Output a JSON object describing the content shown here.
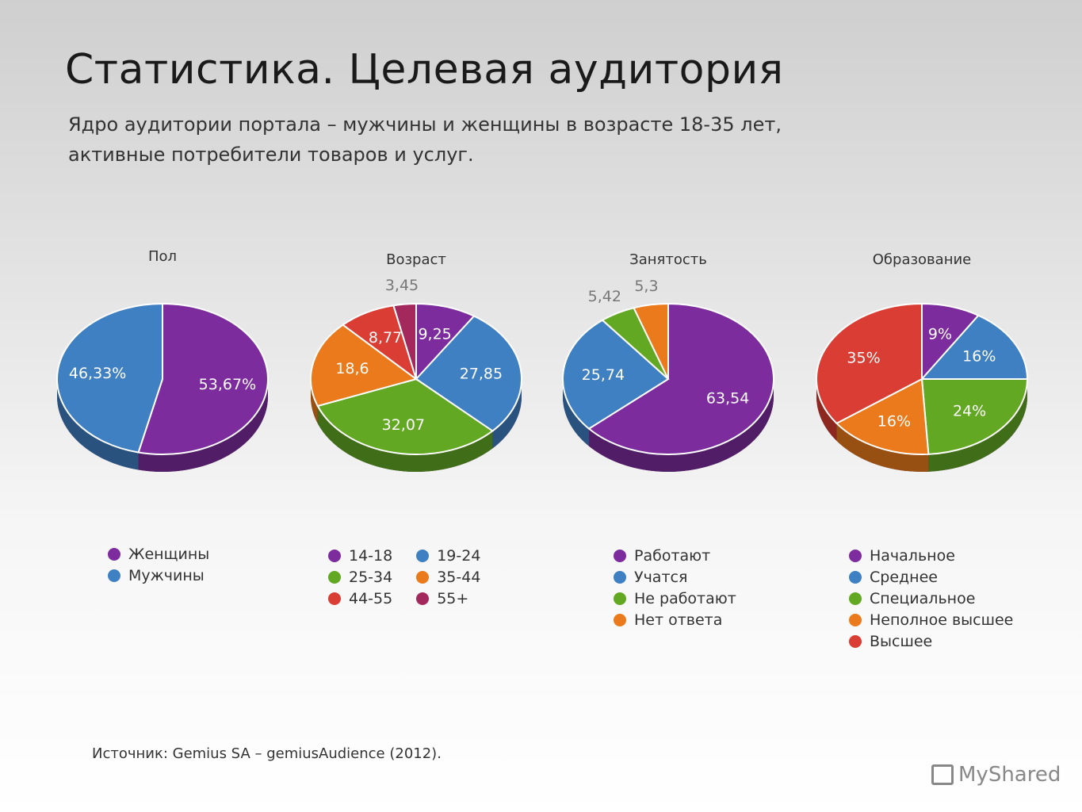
{
  "title": "Статистика. Целевая аудитория",
  "subtitle_line1": "Ядро аудитории портала – мужчины и женщины в возрасте 18-35 лет,",
  "subtitle_line2": "активные потребители товаров и услуг.",
  "source": "Источник: Gemius SA – gemiusAudience (2012).",
  "logo_text": "MyShared",
  "chart_data": [
    {
      "type": "pie",
      "title": "Пол",
      "categories": [
        "Женщины",
        "Мужчины"
      ],
      "values": [
        53.67,
        46.33
      ],
      "labels": [
        "53,67%",
        "46,33%"
      ],
      "colors": [
        "#7d2c9e",
        "#3f80c2"
      ],
      "legend_columns": 1
    },
    {
      "type": "pie",
      "title": "Возраст",
      "categories": [
        "14-18",
        "19-24",
        "25-34",
        "35-44",
        "44-55",
        "55+"
      ],
      "values": [
        9.25,
        27.85,
        32.07,
        18.6,
        8.77,
        3.45
      ],
      "labels": [
        "9,25",
        "27,85",
        "32,07",
        "18,6",
        "8,77",
        "3,45"
      ],
      "colors": [
        "#7d2c9e",
        "#3f80c2",
        "#62a823",
        "#ea7a1b",
        "#d93d33",
        "#a3295c"
      ],
      "legend_columns": 2
    },
    {
      "type": "pie",
      "title": "Занятость",
      "categories": [
        "Работают",
        "Учатся",
        "Не работают",
        "Нет ответа"
      ],
      "values": [
        63.54,
        25.74,
        5.42,
        5.3
      ],
      "labels": [
        "63,54",
        "25,74",
        "5,42",
        "5,3"
      ],
      "colors": [
        "#7d2c9e",
        "#3f80c2",
        "#62a823",
        "#ea7a1b"
      ],
      "legend_columns": 1
    },
    {
      "type": "pie",
      "title": "Образование",
      "categories": [
        "Начальное",
        "Среднее",
        "Специальное",
        "Неполное высшее",
        "Высшее"
      ],
      "values": [
        9,
        16,
        24,
        16,
        35
      ],
      "labels": [
        "9%",
        "16%",
        "24%",
        "16%",
        "35%"
      ],
      "colors": [
        "#7d2c9e",
        "#3f80c2",
        "#62a823",
        "#ea7a1b",
        "#d93d33"
      ],
      "legend_columns": 1
    }
  ]
}
